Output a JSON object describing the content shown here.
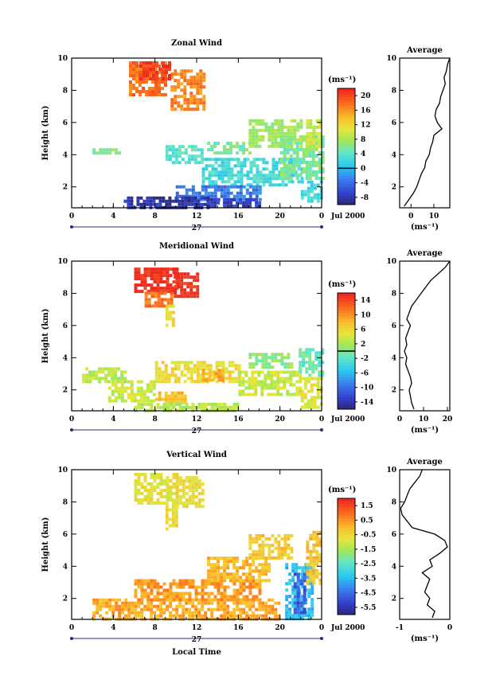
{
  "figure": {
    "xlabel": "Local Time",
    "date_label": "Jul 2000",
    "date_day": "27",
    "profile_title": "Average",
    "unit": "(ms⁻¹)"
  },
  "chart_data": [
    {
      "type": "heatmap",
      "title": "Zonal Wind",
      "ylabel": "Height (km)",
      "x_ticks": [
        "0",
        "4",
        "8",
        "12",
        "16",
        "20",
        "0"
      ],
      "y_ticks": [
        "2",
        "4",
        "6",
        "8",
        "10"
      ],
      "xlim": [
        0,
        24
      ],
      "ylim": [
        0.7,
        10
      ],
      "colorbar": {
        "unit": "(ms⁻¹)",
        "ticks": [
          "20",
          "16",
          "12",
          "8",
          "4",
          "0",
          "-4",
          "-8"
        ],
        "range": [
          -10,
          22
        ],
        "zero_line": 0
      },
      "profile": {
        "title": "Average",
        "x_ticks": [
          "0",
          "10"
        ],
        "xlim": [
          -5,
          17
        ],
        "xlabel": "(ms⁻¹)",
        "y": [
          0.8,
          1.2,
          1.6,
          2.0,
          2.4,
          2.8,
          3.2,
          3.6,
          4.0,
          4.4,
          4.8,
          5.2,
          5.6,
          6.0,
          6.4,
          6.8,
          7.2,
          7.6,
          8.0,
          8.4,
          8.8,
          9.2,
          9.6,
          10.0
        ],
        "x": [
          -3,
          -1,
          1,
          2.5,
          3.5,
          4.5,
          6,
          6.5,
          8,
          8.5,
          9.5,
          10,
          13.5,
          11.5,
          10.5,
          11,
          12.5,
          13,
          14,
          15,
          14.5,
          15.5,
          16,
          17
        ]
      },
      "regions": [
        {
          "x": [
            5.5,
            9
          ],
          "y": [
            7.8,
            9.8
          ],
          "value": 18
        },
        {
          "x": [
            9.5,
            12.8
          ],
          "y": [
            6.8,
            9.3
          ],
          "value": 17
        },
        {
          "x": [
            6.5,
            9.5
          ],
          "y": [
            8.8,
            9.8
          ],
          "value": 21
        },
        {
          "x": [
            2,
            4.5
          ],
          "y": [
            4.1,
            4.4
          ],
          "value": 6
        },
        {
          "x": [
            9,
            12.5
          ],
          "y": [
            3.6,
            4.6
          ],
          "value": 4
        },
        {
          "x": [
            13,
            17
          ],
          "y": [
            4.2,
            4.8
          ],
          "value": 6
        },
        {
          "x": [
            17,
            22
          ],
          "y": [
            4.5,
            6.2
          ],
          "value": 8
        },
        {
          "x": [
            12.5,
            22
          ],
          "y": [
            2.2,
            3.8
          ],
          "value": 3
        },
        {
          "x": [
            20,
            24
          ],
          "y": [
            2.5,
            5.2
          ],
          "value": 6
        },
        {
          "x": [
            22.5,
            24
          ],
          "y": [
            4.5,
            6.2
          ],
          "value": 10
        },
        {
          "x": [
            22,
            24
          ],
          "y": [
            1.2,
            2.4
          ],
          "value": 3
        },
        {
          "x": [
            10,
            18
          ],
          "y": [
            1.3,
            2.1
          ],
          "value": -3
        },
        {
          "x": [
            5,
            13
          ],
          "y": [
            0.8,
            1.4
          ],
          "value": -8
        },
        {
          "x": [
            13,
            18
          ],
          "y": [
            0.8,
            1.3
          ],
          "value": -7
        }
      ]
    },
    {
      "type": "heatmap",
      "title": "Meridional Wind",
      "ylabel": "Height (km)",
      "x_ticks": [
        "0",
        "4",
        "8",
        "12",
        "16",
        "20",
        "0"
      ],
      "y_ticks": [
        "2",
        "4",
        "6",
        "8",
        "10"
      ],
      "xlim": [
        0,
        24
      ],
      "ylim": [
        0.7,
        10
      ],
      "colorbar": {
        "unit": "(ms⁻¹)",
        "ticks": [
          "14",
          "10",
          "6",
          "2",
          "-2",
          "-6",
          "-10",
          "-14"
        ],
        "range": [
          -16,
          16
        ],
        "zero_line": 0
      },
      "profile": {
        "title": "Average",
        "x_ticks": [
          "0",
          "10",
          "20"
        ],
        "xlim": [
          0,
          21
        ],
        "xlabel": "(ms⁻¹)",
        "y": [
          0.8,
          1.2,
          1.6,
          2.0,
          2.4,
          2.8,
          3.2,
          3.6,
          4.0,
          4.4,
          4.8,
          5.2,
          5.6,
          6.0,
          6.4,
          6.8,
          7.2,
          7.6,
          8.0,
          8.4,
          8.8,
          9.2,
          9.6,
          10.0
        ],
        "x": [
          6,
          5,
          4.5,
          4,
          5,
          4.5,
          3.5,
          2.5,
          3,
          2,
          3,
          2.5,
          3.5,
          4.5,
          3,
          4,
          5,
          7,
          9,
          11,
          13,
          16,
          19,
          21
        ]
      },
      "regions": [
        {
          "x": [
            6,
            10
          ],
          "y": [
            8.1,
            9.6
          ],
          "value": 16
        },
        {
          "x": [
            9.8,
            12
          ],
          "y": [
            7.8,
            9.3
          ],
          "value": 16
        },
        {
          "x": [
            7,
            9.5
          ],
          "y": [
            7.2,
            8.1
          ],
          "value": 12
        },
        {
          "x": [
            9,
            9.8
          ],
          "y": [
            6,
            7.3
          ],
          "value": 6
        },
        {
          "x": [
            8,
            16
          ],
          "y": [
            2.5,
            3.8
          ],
          "value": 6
        },
        {
          "x": [
            12.5,
            14.5
          ],
          "y": [
            2.7,
            3.3
          ],
          "value": 9
        },
        {
          "x": [
            3.5,
            8
          ],
          "y": [
            1.4,
            2.6
          ],
          "value": 4
        },
        {
          "x": [
            8,
            11
          ],
          "y": [
            1.2,
            1.9
          ],
          "value": 8
        },
        {
          "x": [
            16,
            22
          ],
          "y": [
            1.8,
            3.2
          ],
          "value": 4
        },
        {
          "x": [
            1,
            5
          ],
          "y": [
            2.6,
            3.4
          ],
          "value": 3
        },
        {
          "x": [
            17,
            21
          ],
          "y": [
            3.5,
            4.3
          ],
          "value": 1
        },
        {
          "x": [
            21.8,
            24
          ],
          "y": [
            3.0,
            4.6
          ],
          "value": -1
        },
        {
          "x": [
            22,
            24
          ],
          "y": [
            1.0,
            2.8
          ],
          "value": 5
        },
        {
          "x": [
            6,
            16
          ],
          "y": [
            0.8,
            1.2
          ],
          "value": 3
        }
      ]
    },
    {
      "type": "heatmap",
      "title": "Vertical Wind",
      "ylabel": "Height (km)",
      "x_ticks": [
        "0",
        "4",
        "8",
        "12",
        "16",
        "20",
        "0"
      ],
      "y_ticks": [
        "2",
        "4",
        "6",
        "8",
        "10"
      ],
      "xlim": [
        0,
        24
      ],
      "ylim": [
        0.7,
        10
      ],
      "colorbar": {
        "unit": "(ms⁻¹)",
        "ticks": [
          "1.5",
          "0.5",
          "-0.5",
          "-1.5",
          "-2.5",
          "-3.5",
          "-4.5",
          "-5.5"
        ],
        "range": [
          -6.5,
          2.5
        ]
      },
      "profile": {
        "title": "Average",
        "x_ticks": [
          "-1",
          "0"
        ],
        "xlim": [
          -1,
          0
        ],
        "xlabel": "(ms⁻¹)",
        "y": [
          0.8,
          1.2,
          1.6,
          2.0,
          2.4,
          2.8,
          3.2,
          3.6,
          4.0,
          4.4,
          4.8,
          5.2,
          5.6,
          6.0,
          6.4,
          6.8,
          7.2,
          7.6,
          8.0,
          8.4,
          8.8,
          9.2,
          9.6,
          10.0
        ],
        "x": [
          -0.35,
          -0.3,
          -0.45,
          -0.4,
          -0.5,
          -0.45,
          -0.4,
          -0.55,
          -0.35,
          -0.4,
          -0.2,
          -0.05,
          -0.1,
          -0.3,
          -0.75,
          -0.85,
          -0.95,
          -0.98,
          -0.9,
          -0.85,
          -0.8,
          -0.7,
          -0.6,
          -0.55
        ]
      },
      "regions": [
        {
          "x": [
            6,
            10
          ],
          "y": [
            8.0,
            9.8
          ],
          "value": -0.5
        },
        {
          "x": [
            10,
            12.5
          ],
          "y": [
            7.8,
            9.6
          ],
          "value": -0.4
        },
        {
          "x": [
            9,
            10
          ],
          "y": [
            6.4,
            8.0
          ],
          "value": -0.3
        },
        {
          "x": [
            2,
            20
          ],
          "y": [
            0.8,
            2.0
          ],
          "value": 0.6
        },
        {
          "x": [
            6,
            18
          ],
          "y": [
            2.0,
            3.2
          ],
          "value": 0.8
        },
        {
          "x": [
            13,
            19
          ],
          "y": [
            3.2,
            4.6
          ],
          "value": 0.4
        },
        {
          "x": [
            17,
            21
          ],
          "y": [
            4.6,
            6.0
          ],
          "value": 0.1
        },
        {
          "x": [
            20.5,
            23
          ],
          "y": [
            0.8,
            4.2
          ],
          "value": -3.5
        },
        {
          "x": [
            21.3,
            22.3
          ],
          "y": [
            1.2,
            3.6
          ],
          "value": -5
        },
        {
          "x": [
            22.5,
            24
          ],
          "y": [
            3.0,
            6.2
          ],
          "value": 0.2
        }
      ]
    }
  ]
}
